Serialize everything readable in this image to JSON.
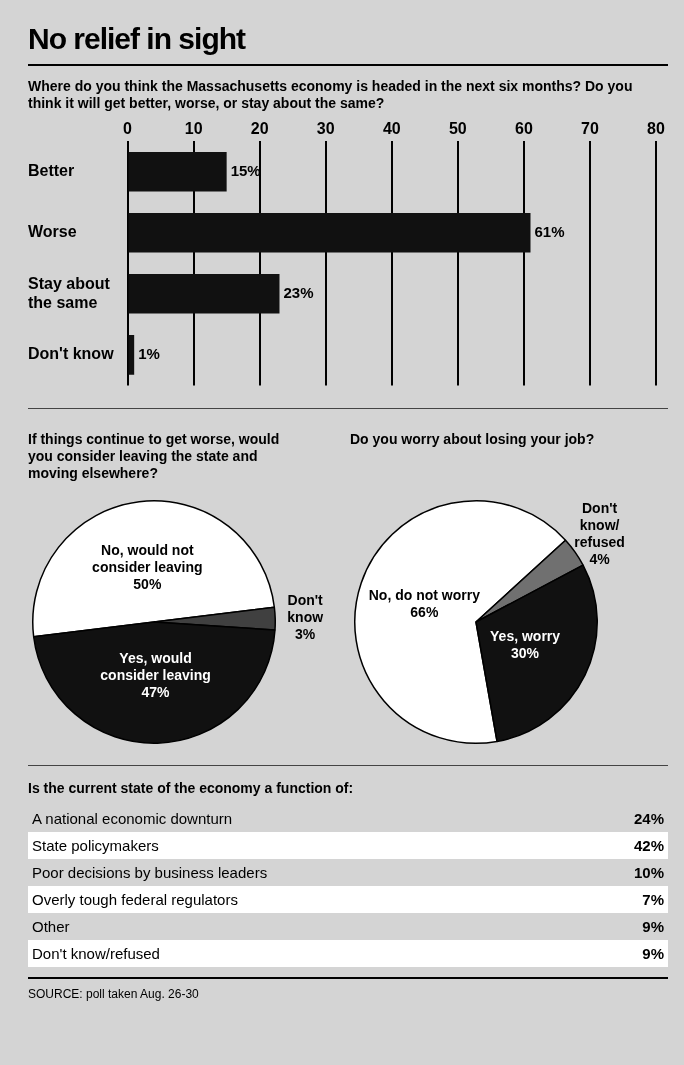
{
  "chart_data": [
    {
      "type": "bar",
      "orientation": "horizontal",
      "title": "No relief in sight",
      "subtitle": "Where do you think the Massachusetts economy is headed in the next six months? Do you think it will get better, worse, or stay about the same?",
      "categories": [
        "Better",
        "Worse",
        "Stay about the same",
        "Don't know"
      ],
      "values": [
        15,
        61,
        23,
        1
      ],
      "value_labels": [
        "15%",
        "61%",
        "23%",
        "1%"
      ],
      "color": "#111111",
      "xlim": [
        0,
        80
      ],
      "xticks": [
        0,
        10,
        20,
        30,
        40,
        50,
        60,
        70,
        80
      ],
      "grid": "x"
    },
    {
      "type": "pie",
      "title": "If things continue to get worse, would you consider leaving the state and moving elsewhere?",
      "categories": [
        "No, would not consider leaving",
        "Don't know",
        "Yes, would consider leaving"
      ],
      "values": [
        50,
        3,
        47
      ],
      "value_labels": [
        "50%",
        "3%",
        "47%"
      ],
      "colors": [
        "#ffffff",
        "#404040",
        "#111111"
      ]
    },
    {
      "type": "pie",
      "title": "Do you worry about losing your job?",
      "categories": [
        "No, do not worry",
        "Don't know/ refused",
        "Yes, worry"
      ],
      "values": [
        66,
        4,
        30
      ],
      "value_labels": [
        "66%",
        "4%",
        "30%"
      ],
      "colors": [
        "#ffffff",
        "#707070",
        "#111111"
      ]
    },
    {
      "type": "other",
      "title": "Is the current state of the economy a function of:",
      "categories": [
        "A national economic downturn",
        "State policymakers",
        "Poor decisions by business leaders",
        "Overly tough federal regulators",
        "Other",
        "Don't know/refused"
      ],
      "values": [
        24,
        42,
        10,
        7,
        9,
        9
      ],
      "value_labels": [
        "24%",
        "42%",
        "10%",
        "7%",
        "9%",
        "9%"
      ],
      "annotations": [
        "SOURCE: poll taken Aug. 26-30"
      ]
    }
  ]
}
